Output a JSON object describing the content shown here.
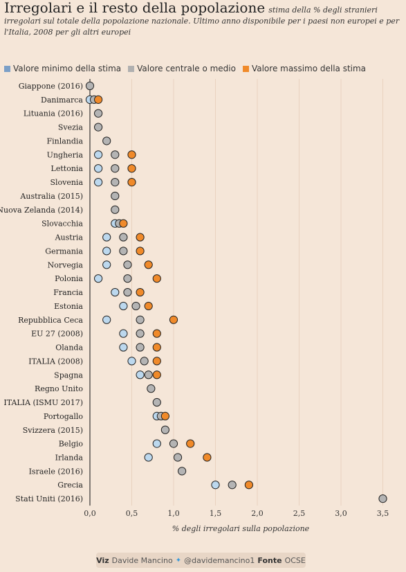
{
  "title": "Irregolari e il resto della popolazione",
  "subtitle": "stima della % degli stranieri irregolari sul totale della popolazione nazionale. Ultimo anno disponibile per i paesi non europei e per l'Italia, 2008 per gli altri europei",
  "legend": [
    {
      "label": "Valore minimo della stima",
      "color": "#7b9fc7"
    },
    {
      "label": "Valore centrale o medio",
      "color": "#b0b0b0"
    },
    {
      "label": "Valore massimo della stima",
      "color": "#f08a2a"
    }
  ],
  "footer": {
    "viz_label": "Viz",
    "viz_name": "Davide Mancino",
    "twitter_icon": "twitter-bird-icon",
    "handle": "@davidemancino1",
    "source_label": "Fonte",
    "source_name": "OCSE"
  },
  "colors": {
    "min": "#bcd8ee",
    "mid": "#b4b4b4",
    "max": "#f08a2a",
    "stroke": "#222222",
    "grid": "#e9d2bf"
  },
  "chart_data": {
    "type": "scatter",
    "xlabel": "% degli irregolari sulla popolazione",
    "ylabel": "",
    "xlim": [
      0,
      3.5
    ],
    "xticks": [
      {
        "value": 0.0,
        "label": "0,0"
      },
      {
        "value": 0.5,
        "label": "0,5"
      },
      {
        "value": 1.0,
        "label": "1,0"
      },
      {
        "value": 1.5,
        "label": "1,5"
      },
      {
        "value": 2.0,
        "label": "2,0"
      },
      {
        "value": 2.5,
        "label": "2,5"
      },
      {
        "value": 3.0,
        "label": "3,0"
      },
      {
        "value": 3.5,
        "label": "3,5"
      }
    ],
    "grid": true,
    "legend_position": "top-left",
    "rows": [
      {
        "label": "Giappone (2016)",
        "min": null,
        "mid": 0.0,
        "max": null
      },
      {
        "label": "Danimarca",
        "min": 0.0,
        "mid": 0.05,
        "max": 0.1
      },
      {
        "label": "Lituania (2016)",
        "min": null,
        "mid": 0.1,
        "max": null
      },
      {
        "label": "Svezia",
        "min": null,
        "mid": 0.1,
        "max": null
      },
      {
        "label": "Finlandia",
        "min": null,
        "mid": 0.2,
        "max": null
      },
      {
        "label": "Ungheria",
        "min": 0.1,
        "mid": 0.3,
        "max": 0.5
      },
      {
        "label": "Lettonia",
        "min": 0.1,
        "mid": 0.3,
        "max": 0.5
      },
      {
        "label": "Slovenia",
        "min": 0.1,
        "mid": 0.3,
        "max": 0.5
      },
      {
        "label": "Australia (2015)",
        "min": null,
        "mid": 0.3,
        "max": null
      },
      {
        "label": "Nuova Zelanda (2014)",
        "min": null,
        "mid": 0.3,
        "max": null
      },
      {
        "label": "Slovacchia",
        "min": 0.3,
        "mid": 0.35,
        "max": 0.4
      },
      {
        "label": "Austria",
        "min": 0.2,
        "mid": 0.4,
        "max": 0.6
      },
      {
        "label": "Germania",
        "min": 0.2,
        "mid": 0.4,
        "max": 0.6
      },
      {
        "label": "Norvegia",
        "min": 0.2,
        "mid": 0.45,
        "max": 0.7
      },
      {
        "label": "Polonia",
        "min": 0.1,
        "mid": 0.45,
        "max": 0.8
      },
      {
        "label": "Francia",
        "min": 0.3,
        "mid": 0.45,
        "max": 0.6
      },
      {
        "label": "Estonia",
        "min": 0.4,
        "mid": 0.55,
        "max": 0.7
      },
      {
        "label": "Repubblica Ceca",
        "min": 0.2,
        "mid": 0.6,
        "max": 1.0
      },
      {
        "label": "EU 27 (2008)",
        "min": 0.4,
        "mid": 0.6,
        "max": 0.8
      },
      {
        "label": "Olanda",
        "min": 0.4,
        "mid": 0.6,
        "max": 0.8
      },
      {
        "label": "ITALIA (2008)",
        "min": 0.5,
        "mid": 0.65,
        "max": 0.8
      },
      {
        "label": "Spagna",
        "min": 0.6,
        "mid": 0.7,
        "max": 0.8
      },
      {
        "label": "Regno Unito",
        "min": null,
        "mid": 0.73,
        "max": null
      },
      {
        "label": "ITALIA (ISMU 2017)",
        "min": null,
        "mid": 0.8,
        "max": null
      },
      {
        "label": "Portogallo",
        "min": 0.8,
        "mid": 0.85,
        "max": 0.9
      },
      {
        "label": "Svizzera (2015)",
        "min": null,
        "mid": 0.9,
        "max": null
      },
      {
        "label": "Belgio",
        "min": 0.8,
        "mid": 1.0,
        "max": 1.2
      },
      {
        "label": "Irlanda",
        "min": 0.7,
        "mid": 1.05,
        "max": 1.4
      },
      {
        "label": "Israele (2016)",
        "min": null,
        "mid": 1.1,
        "max": null
      },
      {
        "label": "Grecia",
        "min": 1.5,
        "mid": 1.7,
        "max": 1.9
      },
      {
        "label": "Stati Uniti (2016)",
        "min": null,
        "mid": 3.5,
        "max": null
      }
    ]
  }
}
